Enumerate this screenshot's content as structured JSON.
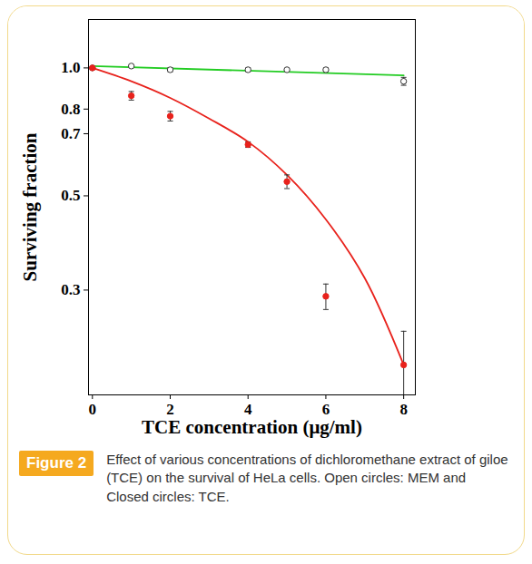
{
  "chart_data": {
    "type": "scatter",
    "xlabel": "TCE concentration (μg/ml)",
    "ylabel": "Surviving fraction",
    "caption_label": "Figure 2",
    "caption": "Effect of various concentrations of dichloromethane extract of giloe (TCE) on the survival of HeLa cells. Open circles: MEM and Closed circles: TCE.",
    "log": "y",
    "xlim": [
      -0.1,
      8.3
    ],
    "xticks": [
      0,
      2,
      4,
      6,
      8
    ],
    "ylim": [
      0.17,
      1.3
    ],
    "yticks": [
      0.3,
      0.5,
      0.7,
      0.8,
      {
        "value": 1,
        "label": "1.0"
      }
    ],
    "series": [
      {
        "name": "MEM",
        "color": "#22cc22",
        "marker": "circle-open",
        "line_style": "solid",
        "x": [
          0,
          1,
          2,
          4,
          5,
          6,
          8
        ],
        "values": [
          1.0,
          1.01,
          0.99,
          0.99,
          0.99,
          0.99,
          0.93
        ],
        "errors": [
          0.005,
          0.005,
          0.01,
          0.01,
          0.005,
          0.01,
          0.02
        ],
        "fit": {
          "x": [
            0,
            8
          ],
          "values": [
            1.01,
            0.96
          ]
        }
      },
      {
        "name": "TCE",
        "color": "#e8221c",
        "marker": "circle",
        "line_style": "solid",
        "x": [
          0,
          1,
          2,
          4,
          5,
          6,
          8
        ],
        "values": [
          1.0,
          0.86,
          0.77,
          0.66,
          0.54,
          0.29,
          0.2
        ],
        "errors": [
          0.005,
          0.02,
          0.02,
          0.01,
          0.02,
          0.02,
          0.04
        ],
        "fit": {
          "x": [
            0,
            1,
            2,
            3,
            4,
            5,
            6,
            7,
            8
          ],
          "values": [
            1.0,
            0.93,
            0.85,
            0.76,
            0.67,
            0.56,
            0.44,
            0.32,
            0.2
          ]
        }
      }
    ]
  }
}
